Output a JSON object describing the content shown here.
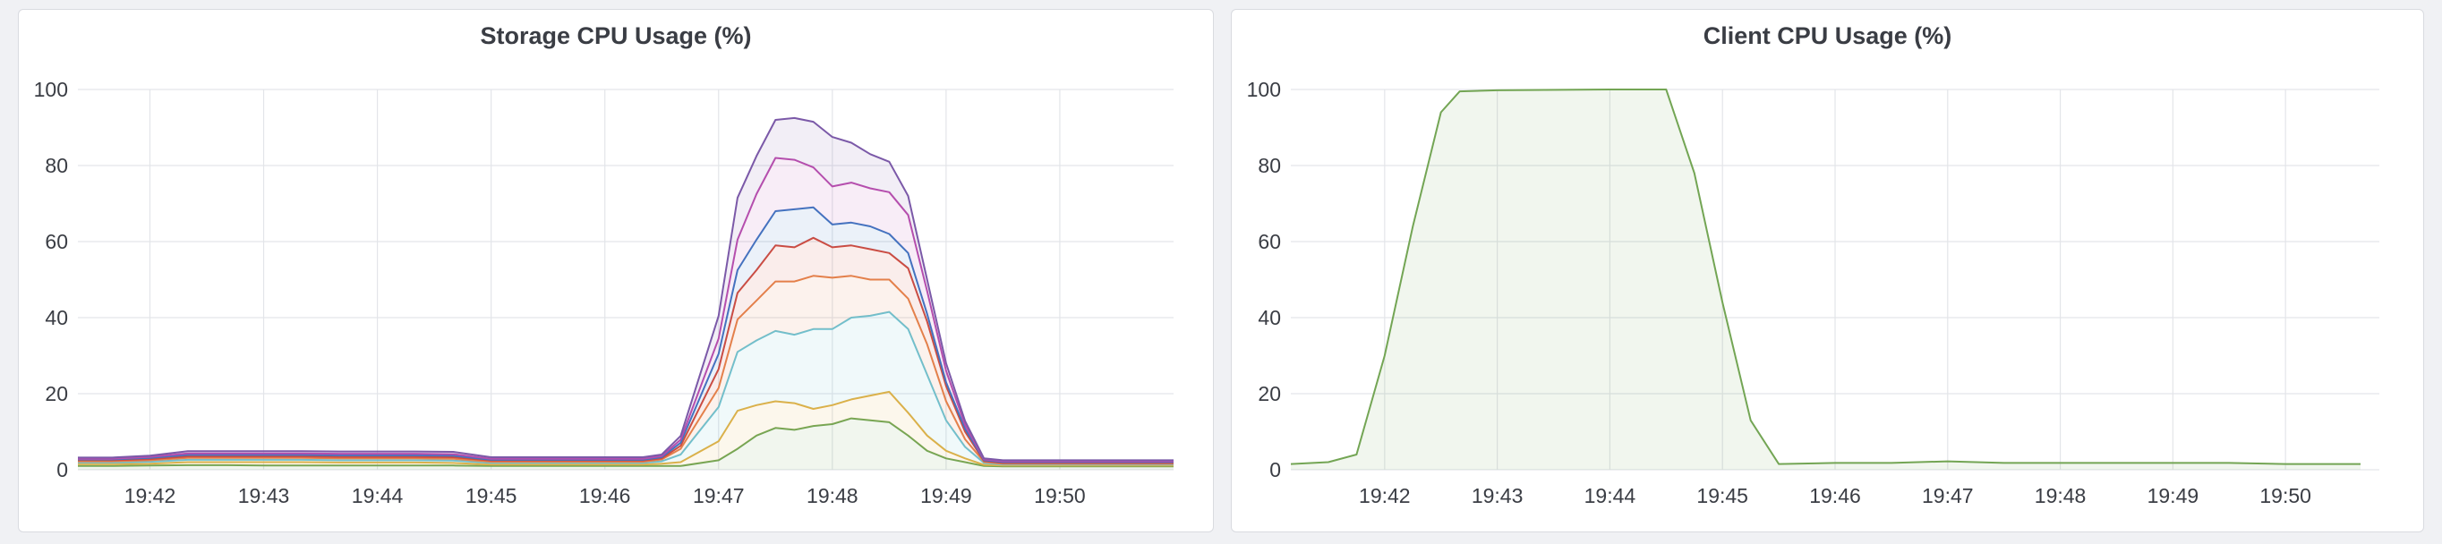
{
  "chart_data": [
    {
      "type": "area",
      "title": "Storage CPU Usage (%)",
      "xlabel": "",
      "ylabel": "",
      "x_ticks": [
        "19:42",
        "19:43",
        "19:44",
        "19:45",
        "19:46",
        "19:47",
        "19:48",
        "19:49",
        "19:50"
      ],
      "y_ticks": [
        "0",
        "20",
        "40",
        "60",
        "80",
        "100"
      ],
      "xlim": [
        "19:41:22",
        "19:51:00"
      ],
      "ylim": [
        0,
        100
      ],
      "grid": true,
      "legend": "none",
      "stacked": true,
      "x": [
        "19:41:22",
        "19:41:40",
        "19:42:00",
        "19:42:20",
        "19:42:40",
        "19:43:00",
        "19:43:20",
        "19:43:40",
        "19:44:00",
        "19:44:20",
        "19:44:40",
        "19:45:00",
        "19:45:20",
        "19:45:40",
        "19:46:00",
        "19:46:20",
        "19:46:30",
        "19:46:40",
        "19:47:00",
        "19:47:10",
        "19:47:20",
        "19:47:30",
        "19:47:40",
        "19:47:50",
        "19:48:00",
        "19:48:10",
        "19:48:20",
        "19:48:30",
        "19:48:40",
        "19:48:50",
        "19:49:00",
        "19:49:10",
        "19:49:20",
        "19:49:30",
        "19:49:40",
        "19:50:00",
        "19:50:20",
        "19:50:40",
        "19:51:00"
      ],
      "series": [
        {
          "color": "#73a554",
          "values": [
            1.0,
            1.0,
            1.1,
            1.2,
            1.2,
            1.1,
            1.1,
            1.1,
            1.1,
            1.1,
            1.1,
            1.0,
            1.0,
            1.0,
            1.0,
            1.0,
            1.0,
            1.0,
            2.5,
            5.5,
            9.0,
            11.0,
            10.5,
            11.5,
            12.0,
            13.5,
            13.0,
            12.5,
            9.0,
            5.0,
            3.0,
            2.0,
            1.0,
            0.9,
            0.9,
            0.9,
            0.9,
            0.9,
            0.9
          ]
        },
        {
          "color": "#e0b044",
          "values": [
            0.5,
            0.5,
            0.5,
            0.8,
            0.8,
            0.9,
            0.9,
            0.8,
            0.8,
            0.8,
            0.7,
            0.4,
            0.4,
            0.4,
            0.4,
            0.4,
            0.6,
            1.0,
            5.0,
            10.0,
            8.0,
            7.0,
            7.0,
            4.5,
            5.0,
            5.0,
            6.5,
            8.0,
            6.0,
            4.0,
            2.0,
            1.0,
            0.3,
            0.2,
            0.2,
            0.2,
            0.2,
            0.2,
            0.2
          ]
        },
        {
          "color": "#6ec2d1",
          "values": [
            0.4,
            0.4,
            0.5,
            0.6,
            0.6,
            0.6,
            0.6,
            0.6,
            0.6,
            0.6,
            0.6,
            0.4,
            0.4,
            0.4,
            0.4,
            0.4,
            0.6,
            2.0,
            9.0,
            15.5,
            17.0,
            18.5,
            18.0,
            21.0,
            20.0,
            21.5,
            21.0,
            21.0,
            22.0,
            16.0,
            8.0,
            3.0,
            0.5,
            0.3,
            0.3,
            0.3,
            0.3,
            0.3,
            0.3
          ]
        },
        {
          "color": "#e5834c",
          "values": [
            0.3,
            0.3,
            0.4,
            0.5,
            0.5,
            0.5,
            0.5,
            0.5,
            0.5,
            0.5,
            0.5,
            0.3,
            0.3,
            0.3,
            0.3,
            0.3,
            0.5,
            1.5,
            5.0,
            8.5,
            10.5,
            13.0,
            14.0,
            14.0,
            13.5,
            11.0,
            9.5,
            8.5,
            8.0,
            8.0,
            5.0,
            2.0,
            0.3,
            0.2,
            0.2,
            0.2,
            0.2,
            0.2,
            0.2
          ]
        },
        {
          "color": "#d14b3e",
          "values": [
            0.3,
            0.3,
            0.3,
            0.4,
            0.4,
            0.4,
            0.4,
            0.4,
            0.4,
            0.4,
            0.4,
            0.3,
            0.3,
            0.3,
            0.3,
            0.3,
            0.3,
            0.8,
            5.0,
            7.0,
            8.0,
            9.5,
            9.0,
            10.0,
            8.0,
            8.0,
            8.0,
            7.0,
            8.0,
            6.0,
            4.0,
            2.0,
            0.2,
            0.2,
            0.2,
            0.2,
            0.2,
            0.2,
            0.2
          ]
        },
        {
          "color": "#3f74c0",
          "values": [
            0.2,
            0.2,
            0.3,
            0.4,
            0.4,
            0.4,
            0.4,
            0.4,
            0.4,
            0.4,
            0.4,
            0.2,
            0.2,
            0.2,
            0.2,
            0.2,
            0.3,
            0.8,
            4.0,
            6.0,
            8.0,
            9.0,
            10.0,
            8.0,
            6.0,
            6.0,
            6.0,
            5.0,
            4.0,
            2.0,
            1.0,
            0.8,
            0.2,
            0.2,
            0.2,
            0.2,
            0.2,
            0.2,
            0.2
          ]
        },
        {
          "color": "#b84eae",
          "values": [
            0.2,
            0.2,
            0.3,
            0.4,
            0.4,
            0.4,
            0.4,
            0.4,
            0.4,
            0.4,
            0.4,
            0.3,
            0.3,
            0.3,
            0.3,
            0.3,
            0.3,
            0.8,
            4.0,
            8.0,
            12.0,
            14.0,
            13.0,
            10.5,
            10.0,
            10.5,
            10.0,
            11.0,
            10.0,
            6.0,
            3.0,
            1.0,
            0.2,
            0.2,
            0.2,
            0.2,
            0.2,
            0.2,
            0.2
          ]
        },
        {
          "color": "#7b59a8",
          "values": [
            0.3,
            0.3,
            0.3,
            0.6,
            0.6,
            0.6,
            0.6,
            0.6,
            0.6,
            0.6,
            0.6,
            0.4,
            0.4,
            0.4,
            0.4,
            0.4,
            0.4,
            1.0,
            6.0,
            11.0,
            10.0,
            10.0,
            11.0,
            12.0,
            13.0,
            10.5,
            9.0,
            8.0,
            5.0,
            3.0,
            2.0,
            1.0,
            0.3,
            0.3,
            0.3,
            0.3,
            0.3,
            0.3,
            0.3
          ]
        }
      ]
    },
    {
      "type": "area",
      "title": "Client CPU Usage (%)",
      "xlabel": "",
      "ylabel": "",
      "x_ticks": [
        "19:42",
        "19:43",
        "19:44",
        "19:45",
        "19:46",
        "19:47",
        "19:48",
        "19:49",
        "19:50"
      ],
      "y_ticks": [
        "0",
        "20",
        "40",
        "60",
        "80",
        "100"
      ],
      "xlim": [
        "19:41:10",
        "19:50:50"
      ],
      "ylim": [
        0,
        100
      ],
      "grid": true,
      "legend": "none",
      "stacked": false,
      "x": [
        "19:41:10",
        "19:41:30",
        "19:41:45",
        "19:42:00",
        "19:42:15",
        "19:42:30",
        "19:42:40",
        "19:43:00",
        "19:44:00",
        "19:44:30",
        "19:44:45",
        "19:45:00",
        "19:45:15",
        "19:45:30",
        "19:46:00",
        "19:46:30",
        "19:47:00",
        "19:47:30",
        "19:48:00",
        "19:48:30",
        "19:49:00",
        "19:49:30",
        "19:50:00",
        "19:50:40"
      ],
      "series": [
        {
          "color": "#73a554",
          "values": [
            1.5,
            2.0,
            4.0,
            30.0,
            64.0,
            94.0,
            99.5,
            99.8,
            100.0,
            100.0,
            78.0,
            44.0,
            13.0,
            1.5,
            1.8,
            1.8,
            2.2,
            1.8,
            1.8,
            1.8,
            1.8,
            1.8,
            1.5,
            1.5
          ]
        }
      ]
    }
  ]
}
